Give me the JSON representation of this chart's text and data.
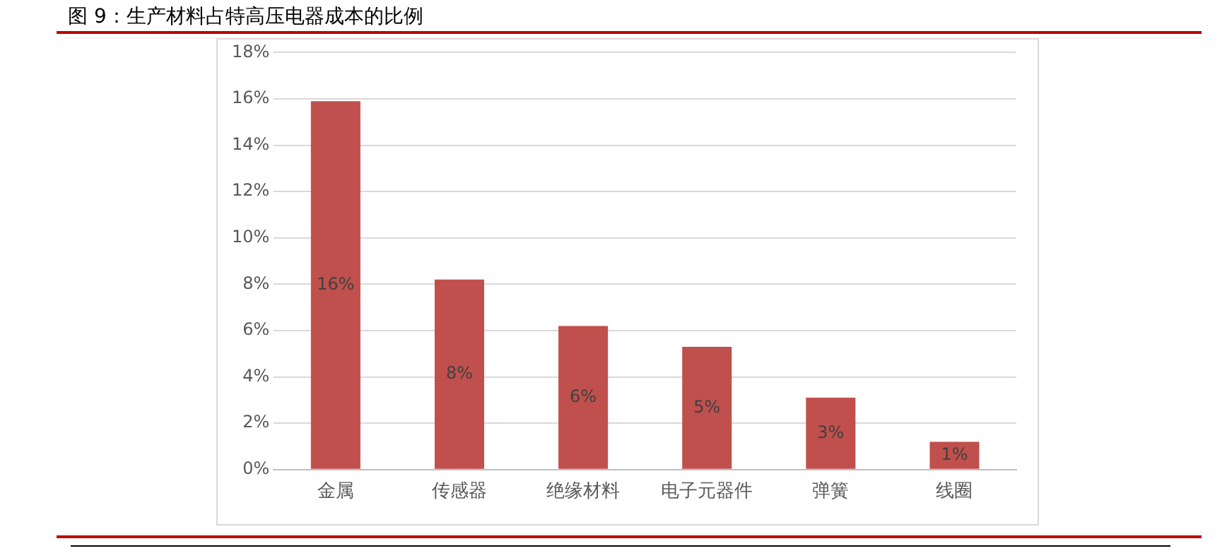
{
  "chart_data": {
    "type": "bar",
    "title": "图 9：生产材料占特高压电器成本的比例",
    "categories": [
      "金属",
      "传感器",
      "绝缘材料",
      "电子元器件",
      "弹簧",
      "线圈"
    ],
    "values": [
      15.9,
      8.2,
      6.2,
      5.3,
      3.1,
      1.2
    ],
    "value_labels": [
      "16%",
      "8%",
      "6%",
      "5%",
      "3%",
      "1%"
    ],
    "color": "#c0504d",
    "ylim": [
      0,
      18
    ],
    "yticks": [
      {
        "value": 0,
        "label": "0%"
      },
      {
        "value": 2,
        "label": "2%"
      },
      {
        "value": 4,
        "label": "4%"
      },
      {
        "value": 6,
        "label": "6%"
      },
      {
        "value": 8,
        "label": "8%"
      },
      {
        "value": 10,
        "label": "10%"
      },
      {
        "value": 12,
        "label": "12%"
      },
      {
        "value": 14,
        "label": "14%"
      },
      {
        "value": 16,
        "label": "16%"
      },
      {
        "value": 18,
        "label": "18%"
      }
    ],
    "grid": "y",
    "legend": false
  }
}
